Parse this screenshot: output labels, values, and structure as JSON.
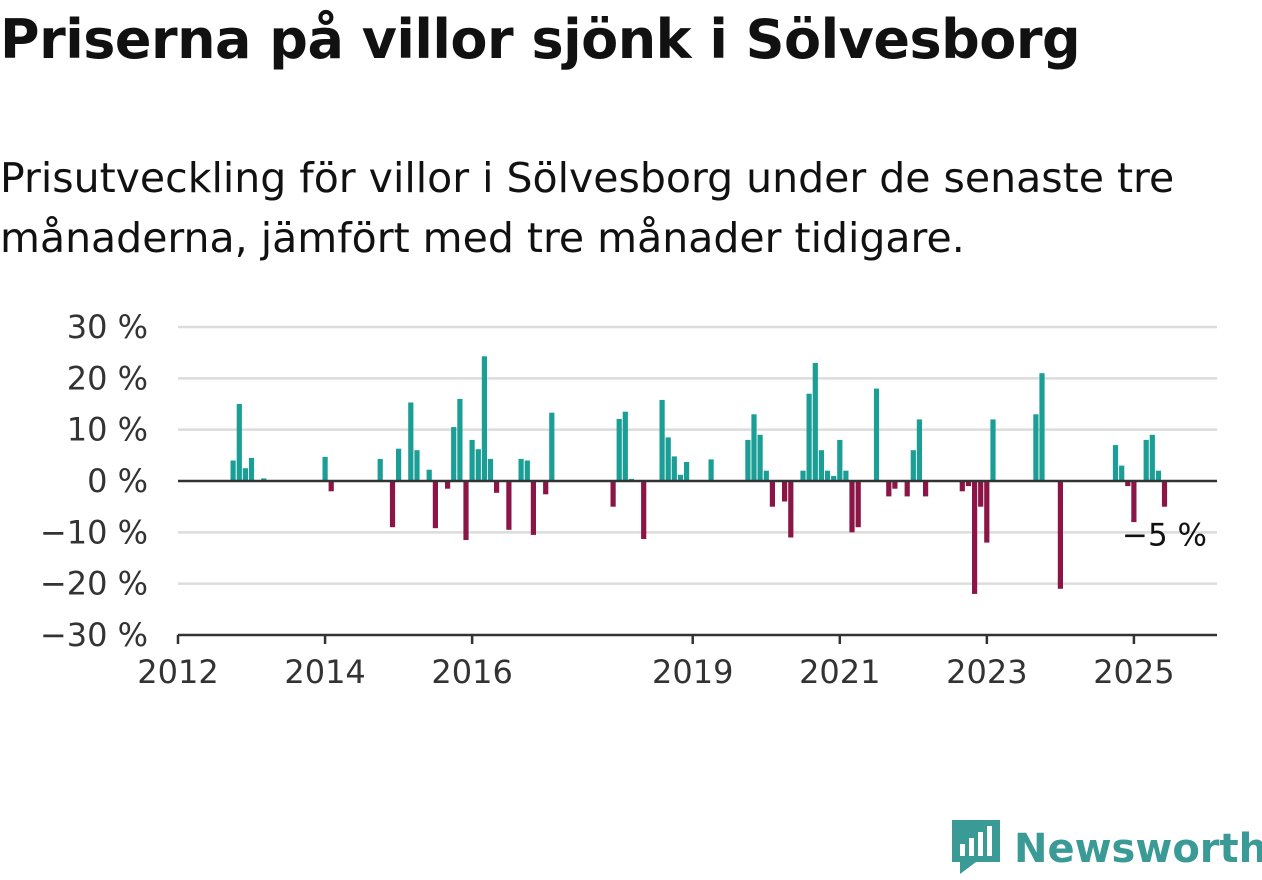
{
  "header": {
    "title": "Priserna på villor sjönk i Sölvesborg",
    "subtitle": "Prisutveckling för villor i Sölvesborg under de senaste tre månaderna, jämfört med tre månader tidigare."
  },
  "brand": {
    "name": "Newsworthy",
    "icon": "newsworthy-logo-icon",
    "color": "#3a9a96"
  },
  "colors": {
    "positive": "#1a9e96",
    "negative": "#8c1548",
    "grid": "#dcdcdc",
    "axis": "#333333"
  },
  "chart_data": {
    "type": "bar",
    "title": "Priserna på villor sjönk i Sölvesborg",
    "subtitle": "Prisutveckling för villor i Sölvesborg under de senaste tre månaderna, jämfört med tre månader tidigare.",
    "ylim": [
      -30,
      30
    ],
    "y_ticks": [
      30,
      20,
      10,
      0,
      -10,
      -20,
      -30
    ],
    "y_tick_labels": [
      "30 %",
      "20 %",
      "10 %",
      "0 %",
      "−10 %",
      "−20 %",
      "−30 %"
    ],
    "x_ticks": [
      "2012",
      "2014",
      "2016",
      "2019",
      "2021",
      "2023",
      "2025"
    ],
    "grid": true,
    "legend": "none",
    "annotation": {
      "text": "−5 %",
      "x": "2025-06",
      "y": -5
    },
    "points": [
      {
        "x": "2012-10",
        "y": 4
      },
      {
        "x": "2012-11",
        "y": 15
      },
      {
        "x": "2012-12",
        "y": 2.5
      },
      {
        "x": "2013-01",
        "y": 4.5
      },
      {
        "x": "2013-03",
        "y": 0.5
      },
      {
        "x": "2014-01",
        "y": 4.7
      },
      {
        "x": "2014-02",
        "y": -2
      },
      {
        "x": "2014-10",
        "y": 4.3
      },
      {
        "x": "2014-12",
        "y": -9
      },
      {
        "x": "2015-01",
        "y": 6.3
      },
      {
        "x": "2015-03",
        "y": 15.3
      },
      {
        "x": "2015-04",
        "y": 6
      },
      {
        "x": "2015-06",
        "y": 2.2
      },
      {
        "x": "2015-07",
        "y": -9.2
      },
      {
        "x": "2015-09",
        "y": -1.5
      },
      {
        "x": "2015-10",
        "y": 10.5
      },
      {
        "x": "2015-11",
        "y": 16
      },
      {
        "x": "2015-12",
        "y": -11.5
      },
      {
        "x": "2016-01",
        "y": 8
      },
      {
        "x": "2016-02",
        "y": 6.2
      },
      {
        "x": "2016-03",
        "y": 24.3
      },
      {
        "x": "2016-04",
        "y": 4.3
      },
      {
        "x": "2016-05",
        "y": -2.3
      },
      {
        "x": "2016-07",
        "y": -9.5
      },
      {
        "x": "2016-09",
        "y": 4.3
      },
      {
        "x": "2016-10",
        "y": 4
      },
      {
        "x": "2016-11",
        "y": -10.5
      },
      {
        "x": "2017-01",
        "y": -2.6
      },
      {
        "x": "2017-02",
        "y": 13.3
      },
      {
        "x": "2017-12",
        "y": -5
      },
      {
        "x": "2018-01",
        "y": 12.1
      },
      {
        "x": "2018-02",
        "y": 13.5
      },
      {
        "x": "2018-03",
        "y": 0.4
      },
      {
        "x": "2018-05",
        "y": -11.3
      },
      {
        "x": "2018-08",
        "y": 15.8
      },
      {
        "x": "2018-09",
        "y": 8.5
      },
      {
        "x": "2018-10",
        "y": 4.8
      },
      {
        "x": "2018-11",
        "y": 1.2
      },
      {
        "x": "2018-12",
        "y": 3.7
      },
      {
        "x": "2019-04",
        "y": 4.2
      },
      {
        "x": "2019-10",
        "y": 8
      },
      {
        "x": "2019-11",
        "y": 13
      },
      {
        "x": "2019-12",
        "y": 9
      },
      {
        "x": "2020-01",
        "y": 2
      },
      {
        "x": "2020-02",
        "y": -5
      },
      {
        "x": "2020-04",
        "y": -4
      },
      {
        "x": "2020-05",
        "y": -11
      },
      {
        "x": "2020-07",
        "y": 2
      },
      {
        "x": "2020-08",
        "y": 17
      },
      {
        "x": "2020-09",
        "y": 23
      },
      {
        "x": "2020-10",
        "y": 6
      },
      {
        "x": "2020-11",
        "y": 2
      },
      {
        "x": "2020-12",
        "y": 1
      },
      {
        "x": "2021-01",
        "y": 8
      },
      {
        "x": "2021-02",
        "y": 2
      },
      {
        "x": "2021-03",
        "y": -10
      },
      {
        "x": "2021-04",
        "y": -9
      },
      {
        "x": "2021-07",
        "y": 18
      },
      {
        "x": "2021-09",
        "y": -3
      },
      {
        "x": "2021-10",
        "y": -1.5
      },
      {
        "x": "2021-12",
        "y": -3
      },
      {
        "x": "2022-01",
        "y": 6
      },
      {
        "x": "2022-02",
        "y": 12
      },
      {
        "x": "2022-03",
        "y": -3
      },
      {
        "x": "2022-09",
        "y": -2
      },
      {
        "x": "2022-10",
        "y": -1
      },
      {
        "x": "2022-11",
        "y": -22
      },
      {
        "x": "2022-12",
        "y": -5
      },
      {
        "x": "2023-01",
        "y": -12
      },
      {
        "x": "2023-02",
        "y": 12
      },
      {
        "x": "2023-09",
        "y": 13
      },
      {
        "x": "2023-10",
        "y": 21
      },
      {
        "x": "2024-01",
        "y": -21
      },
      {
        "x": "2024-10",
        "y": 7
      },
      {
        "x": "2024-11",
        "y": 3
      },
      {
        "x": "2024-12",
        "y": -1
      },
      {
        "x": "2025-01",
        "y": -8
      },
      {
        "x": "2025-03",
        "y": 8
      },
      {
        "x": "2025-04",
        "y": 9
      },
      {
        "x": "2025-05",
        "y": 2
      },
      {
        "x": "2025-06",
        "y": -5
      }
    ]
  }
}
